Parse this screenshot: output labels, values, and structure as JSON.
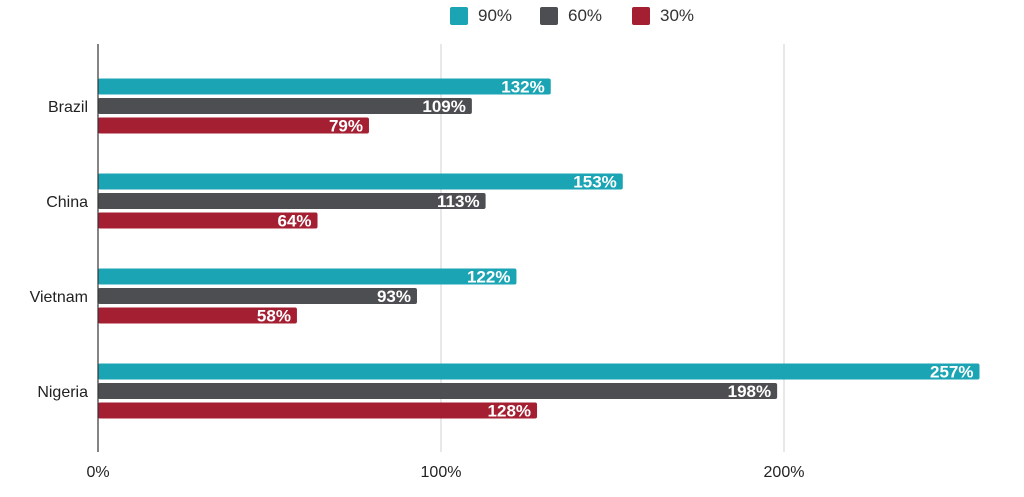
{
  "chart_data": {
    "type": "bar",
    "orientation": "horizontal",
    "categories": [
      "Brazil",
      "China",
      "Vietnam",
      "Nigeria"
    ],
    "series": [
      {
        "name": "90%",
        "color": "#1ba5b4",
        "values": [
          132,
          153,
          122,
          257
        ],
        "labels": [
          "132%",
          "153%",
          "122%",
          "257%"
        ]
      },
      {
        "name": "60%",
        "color": "#4d4e51",
        "values": [
          109,
          113,
          93,
          198
        ],
        "labels": [
          "109%",
          "113%",
          "93%",
          "198%"
        ]
      },
      {
        "name": "30%",
        "color": "#a41f32",
        "values": [
          79,
          64,
          58,
          128
        ],
        "labels": [
          "79%",
          "64%",
          "58%",
          "128%"
        ]
      }
    ],
    "xlim": [
      0,
      263
    ],
    "xticks": [
      0,
      100,
      200
    ],
    "xtick_labels": [
      "0%",
      "100%",
      "200%"
    ],
    "grid": true,
    "legend_position": "top"
  }
}
